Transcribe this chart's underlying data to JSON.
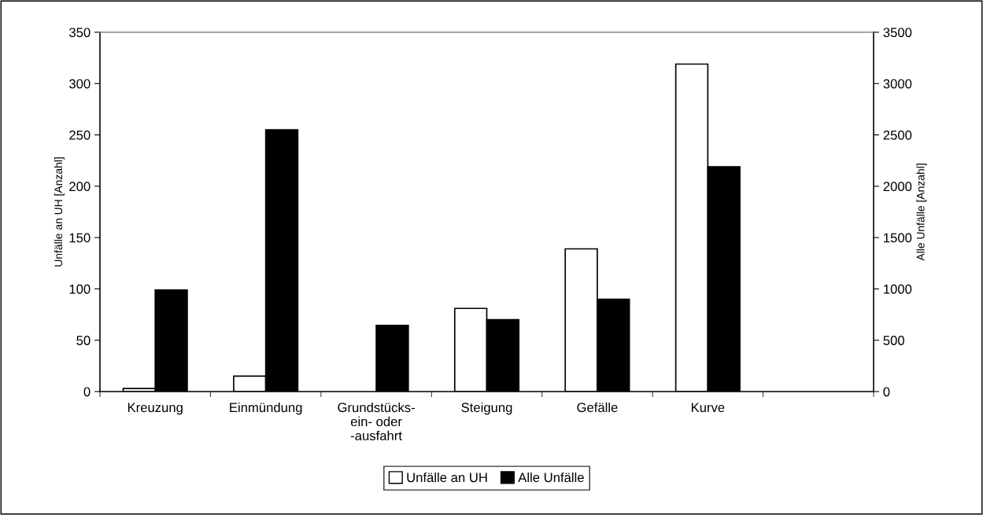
{
  "chart_data": {
    "type": "bar",
    "ylabel": "Unfälle an UH [Anzahl]",
    "y2label": "Alle Unfälle [Anzahl]",
    "categories": [
      "Kreuzung",
      "Einmündung",
      "Grundstücks-\nein- oder\n-ausfahrt",
      "Steigung",
      "Gefälle",
      "Kurve",
      null
    ],
    "series": [
      {
        "name": "Unfälle an UH",
        "color": "#ffffff",
        "values": [
          3,
          15,
          0,
          81,
          139,
          319,
          null
        ]
      },
      {
        "name": "Alle Unfälle",
        "color": "#000000",
        "axis": "y2",
        "values": [
          990,
          2550,
          645,
          700,
          900,
          2190,
          null
        ]
      }
    ],
    "ylim": [
      0,
      350
    ],
    "yticks": [
      0,
      50,
      100,
      150,
      200,
      250,
      300,
      350
    ],
    "y2lim": [
      0,
      3500
    ],
    "y2ticks": [
      0,
      500,
      1000,
      1500,
      2000,
      2500,
      3000,
      3500
    ],
    "grid": false,
    "legend": "bottom"
  }
}
